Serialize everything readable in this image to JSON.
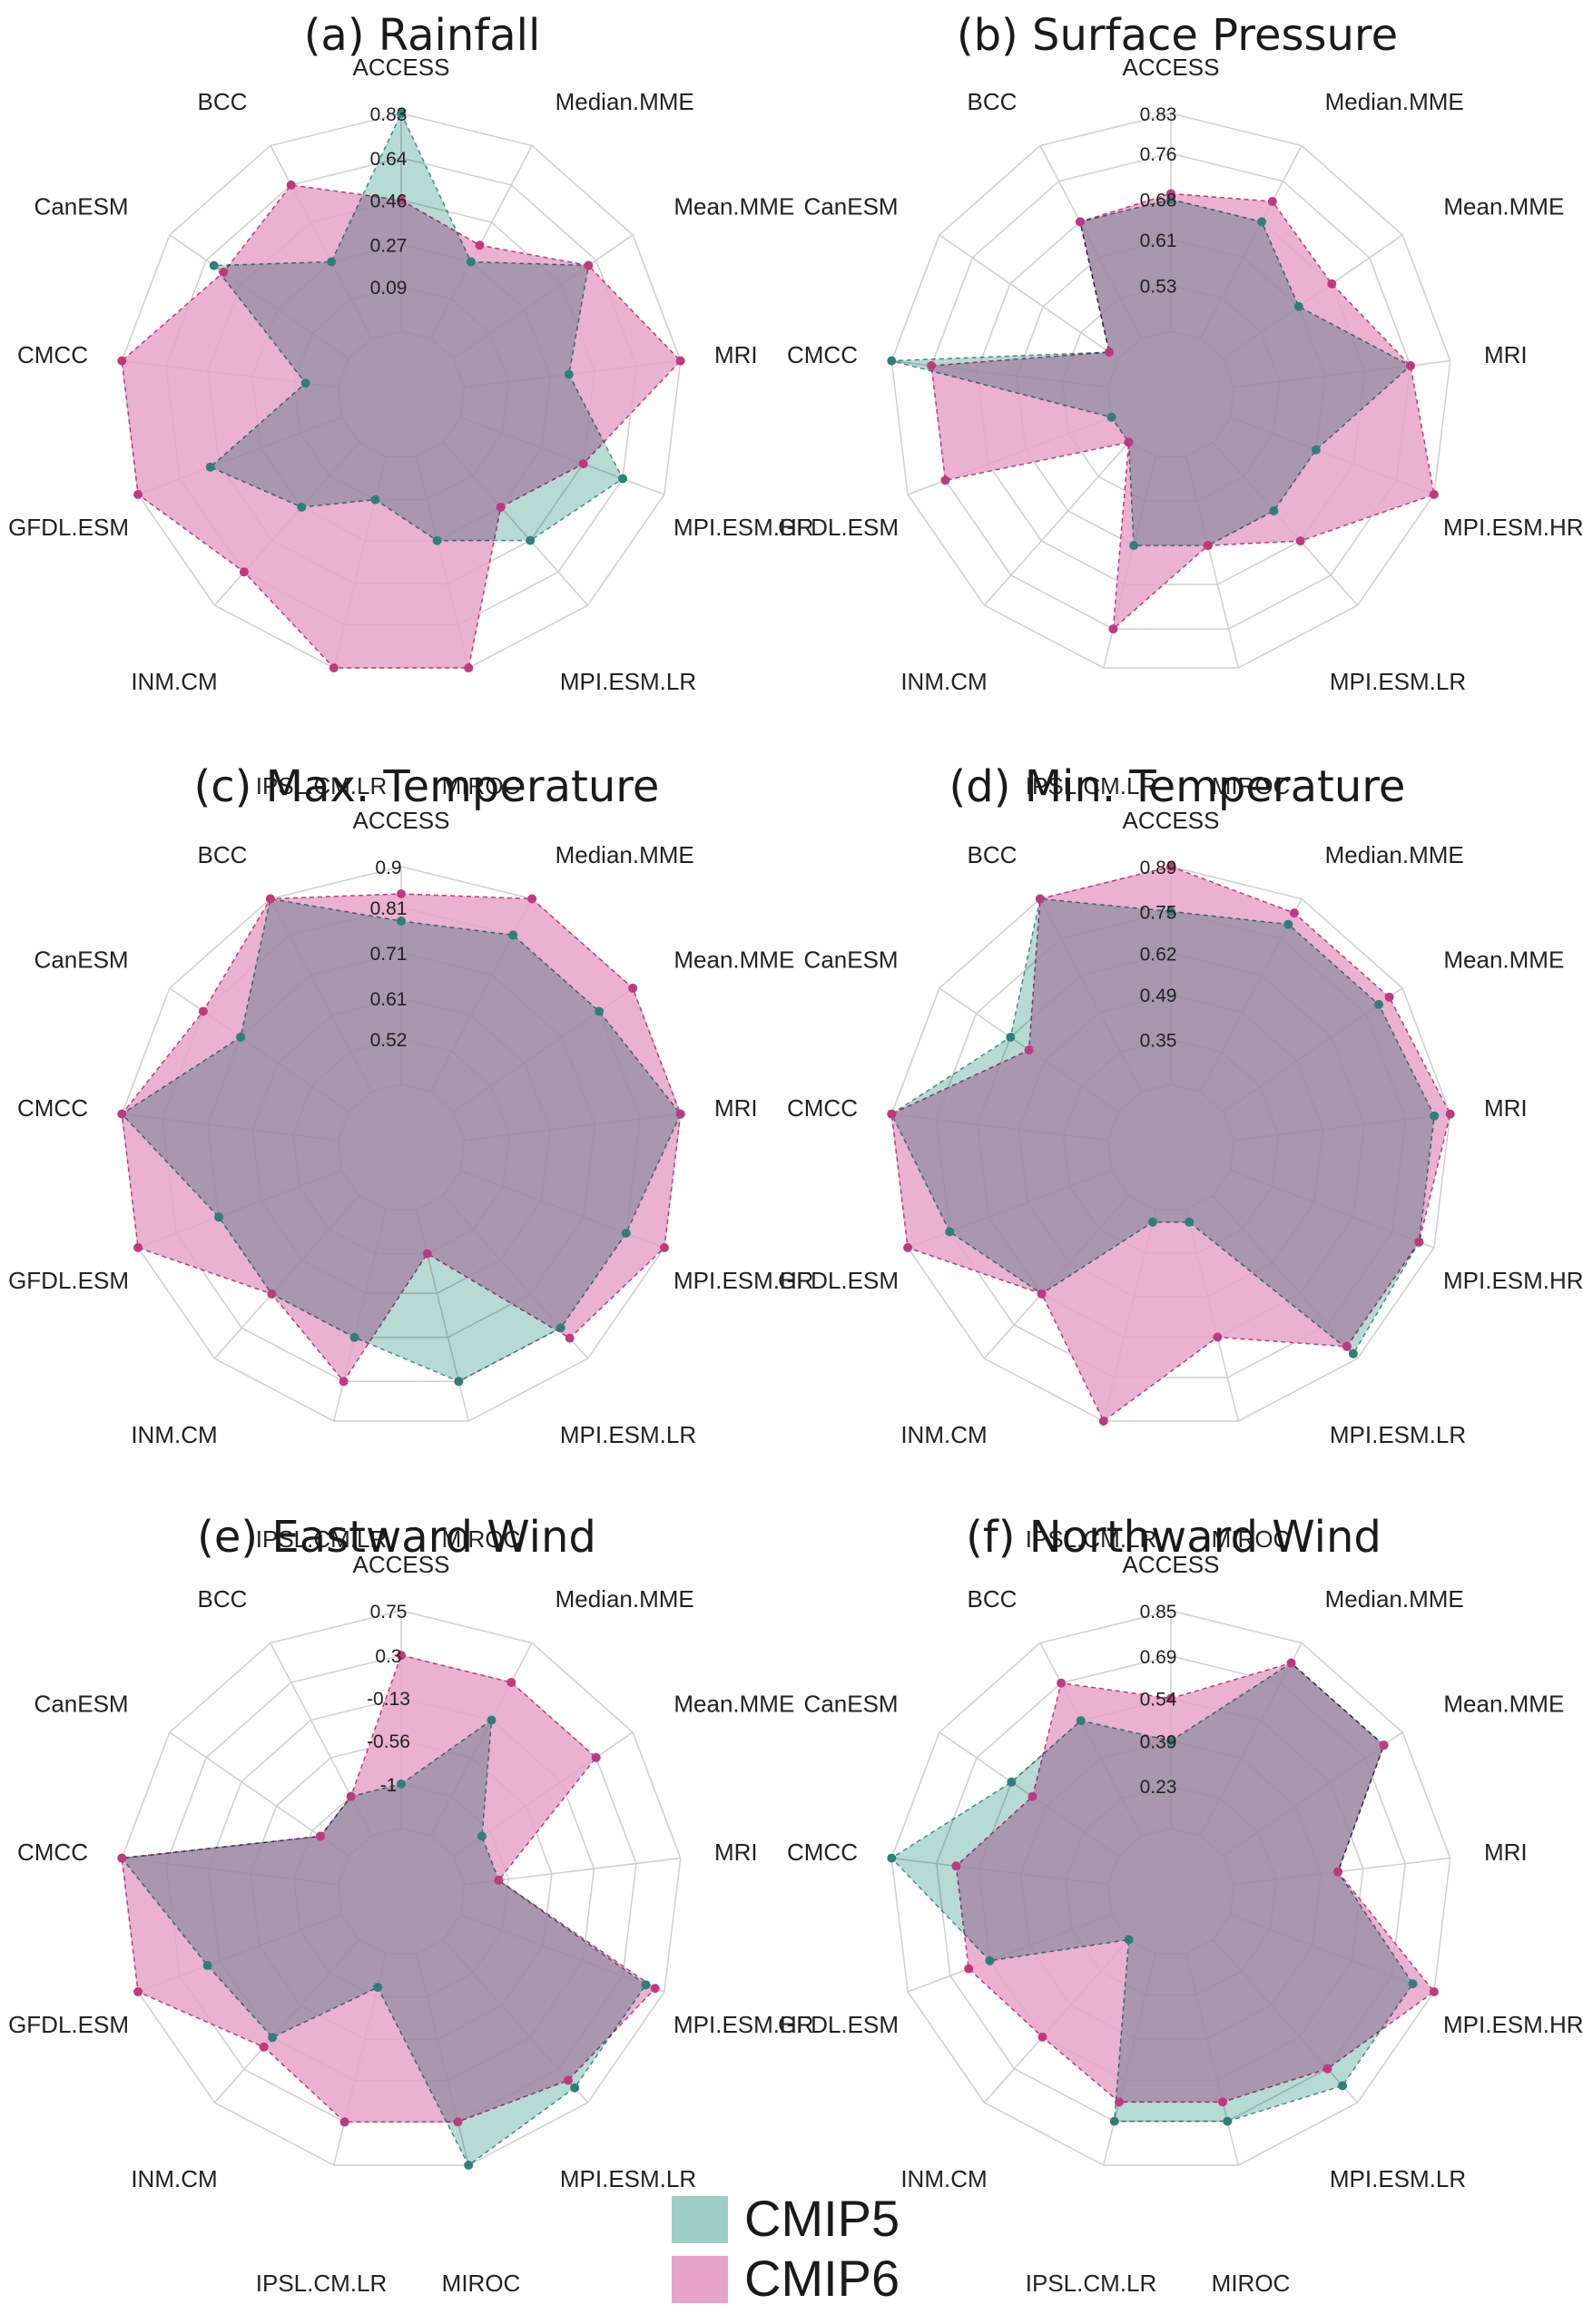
{
  "colors": {
    "cmip5_fill": "#9ecdc6",
    "cmip5_stroke": "#3f8f86",
    "cmip5_point": "#2f7f79",
    "cmip6_fill": "#e8a3c8",
    "cmip6_stroke": "#c0397f",
    "cmip6_point": "#c0397f",
    "overlap_fill": "#9b7aa0",
    "grid": "#cfcfcf"
  },
  "models": [
    "ACCESS",
    "Median.MME",
    "Mean.MME",
    "MRI",
    "MPI.ESM.HR",
    "MPI.ESM.LR",
    "MIROC",
    "IPSL.CM.LR",
    "INM.CM",
    "GFDL.ESM",
    "CMCC",
    "CanESM",
    "BCC"
  ],
  "legend": [
    {
      "label": "CMIP5",
      "color": "#9ecdc6"
    },
    {
      "label": "CMIP6",
      "color": "#e8a3c8"
    }
  ],
  "chart_data": [
    {
      "type": "radar",
      "title": "(a) Rainfall",
      "ticks": [
        "0.09",
        "0.27",
        "0.46",
        "0.64",
        "0.83"
      ],
      "range": [
        -0.1,
        0.83
      ],
      "series": [
        {
          "name": "CMIP5",
          "values": [
            0.83,
            0.27,
            0.6,
            0.35,
            0.64,
            0.46,
            0.27,
            0.09,
            0.27,
            0.5,
            0.04,
            0.6,
            0.27
          ]
        },
        {
          "name": "CMIP6",
          "values": [
            0.46,
            0.35,
            0.6,
            0.83,
            0.46,
            0.27,
            0.83,
            0.83,
            0.64,
            0.83,
            0.83,
            0.55,
            0.64
          ]
        }
      ]
    },
    {
      "type": "radar",
      "title": "(b) Surface Pressure",
      "ticks": [
        "0.53",
        "0.61",
        "0.68",
        "0.76",
        "0.83"
      ],
      "range": [
        0.45,
        0.83
      ],
      "series": [
        {
          "name": "CMIP5",
          "values": [
            0.68,
            0.68,
            0.61,
            0.76,
            0.61,
            0.61,
            0.61,
            0.61,
            0.45,
            0.45,
            0.83,
            0.47,
            0.68
          ]
        },
        {
          "name": "CMIP6",
          "values": [
            0.69,
            0.72,
            0.68,
            0.76,
            0.83,
            0.68,
            0.61,
            0.76,
            0.45,
            0.76,
            0.76,
            0.47,
            0.68
          ]
        }
      ]
    },
    {
      "type": "radar",
      "title": "(c) Max. Temperature",
      "ticks": [
        "0.52",
        "0.61",
        "0.71",
        "0.81",
        "0.9"
      ],
      "range": [
        0.42,
        0.9
      ],
      "series": [
        {
          "name": "CMIP5",
          "values": [
            0.78,
            0.81,
            0.81,
            0.9,
            0.81,
            0.81,
            0.81,
            0.71,
            0.71,
            0.71,
            0.9,
            0.71,
            0.9
          ]
        },
        {
          "name": "CMIP6",
          "values": [
            0.84,
            0.9,
            0.9,
            0.9,
            0.9,
            0.84,
            0.52,
            0.81,
            0.71,
            0.9,
            0.9,
            0.81,
            0.9
          ]
        }
      ]
    },
    {
      "type": "radar",
      "title": "(d) Min. Temperature",
      "ticks": [
        "0.35",
        "0.49",
        "0.62",
        "0.75",
        "0.89"
      ],
      "range": [
        0.21,
        0.89
      ],
      "series": [
        {
          "name": "CMIP5",
          "values": [
            0.75,
            0.8,
            0.8,
            0.84,
            0.84,
            0.87,
            0.25,
            0.25,
            0.62,
            0.75,
            0.89,
            0.62,
            0.89
          ]
        },
        {
          "name": "CMIP6",
          "values": [
            0.89,
            0.84,
            0.84,
            0.89,
            0.84,
            0.84,
            0.62,
            0.89,
            0.62,
            0.89,
            0.89,
            0.55,
            0.89
          ]
        }
      ]
    },
    {
      "type": "radar",
      "title": "(e) Eastward Wind",
      "ticks": [
        "-1",
        "-0.56",
        "-0.13",
        "0.3",
        "0.75"
      ],
      "range": [
        -1.45,
        0.75
      ],
      "series": [
        {
          "name": "CMIP5",
          "values": [
            -1.0,
            -0.13,
            -1.1,
            -1.1,
            0.55,
            0.55,
            0.75,
            -1.1,
            -0.13,
            0.0,
            0.75,
            -1.1,
            -1.0
          ]
        },
        {
          "name": "CMIP6",
          "values": [
            0.3,
            0.3,
            0.3,
            -1.1,
            0.65,
            0.45,
            0.3,
            0.3,
            0.0,
            0.75,
            0.75,
            -1.1,
            -1.0
          ]
        }
      ]
    },
    {
      "type": "radar",
      "title": "(f) Northward  Wind",
      "ticks": [
        "0.23",
        "0.39",
        "0.54",
        "0.69",
        "0.85"
      ],
      "range": [
        0.08,
        0.85
      ],
      "series": [
        {
          "name": "CMIP5",
          "values": [
            0.39,
            0.77,
            0.77,
            0.45,
            0.77,
            0.77,
            0.69,
            0.69,
            0.08,
            0.54,
            0.85,
            0.54,
            0.54
          ]
        },
        {
          "name": "CMIP6",
          "values": [
            0.54,
            0.77,
            0.77,
            0.45,
            0.85,
            0.69,
            0.62,
            0.62,
            0.54,
            0.62,
            0.62,
            0.45,
            0.69
          ]
        }
      ]
    }
  ]
}
